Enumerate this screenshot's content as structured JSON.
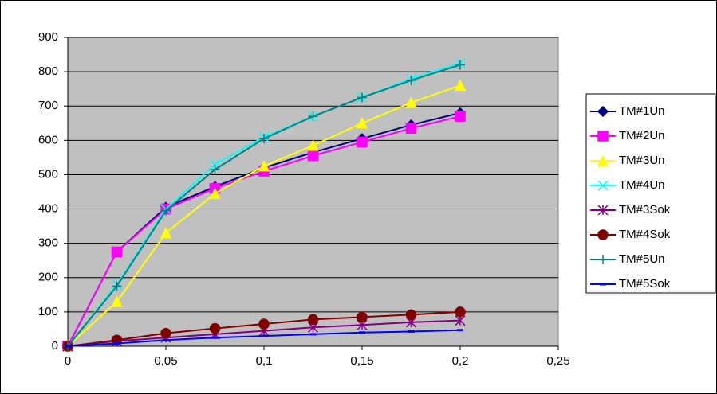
{
  "chart_data": {
    "type": "line",
    "x": [
      0,
      0.025,
      0.05,
      0.075,
      0.1,
      0.125,
      0.15,
      0.175,
      0.2
    ],
    "xlim": [
      0,
      0.25
    ],
    "xticks": [
      0,
      {
        "value": 0.05,
        "label": "0,05"
      },
      {
        "value": 0.1,
        "label": "0,1"
      },
      {
        "value": 0.15,
        "label": "0,15"
      },
      {
        "value": 0.2,
        "label": "0,2"
      },
      {
        "value": 0.25,
        "label": "0,25"
      }
    ],
    "ylim": [
      0,
      900
    ],
    "yticks": [
      0,
      100,
      200,
      300,
      400,
      500,
      600,
      700,
      800,
      900
    ],
    "grid": true,
    "legend": "right",
    "series": [
      {
        "name": "TM#1Un",
        "color": "#000080",
        "marker": "diamond",
        "values": [
          0,
          275,
          405,
          465,
          520,
          565,
          605,
          645,
          680
        ]
      },
      {
        "name": "TM#2Un",
        "color": "#FF00FF",
        "marker": "square",
        "values": [
          0,
          275,
          400,
          460,
          510,
          555,
          595,
          635,
          670
        ]
      },
      {
        "name": "TM#3Un",
        "color": "#FFFF00",
        "marker": "triangle",
        "values": [
          0,
          130,
          330,
          445,
          525,
          585,
          650,
          710,
          760
        ]
      },
      {
        "name": "TM#4Un",
        "color": "#00FFFF",
        "marker": "x",
        "values": [
          0,
          180,
          400,
          530,
          610,
          670,
          725,
          780,
          825
        ]
      },
      {
        "name": "TM#3Sok",
        "color": "#800080",
        "marker": "star",
        "values": [
          0,
          15,
          25,
          35,
          45,
          55,
          62,
          70,
          75
        ]
      },
      {
        "name": "TM#4Sok",
        "color": "#800000",
        "marker": "circle",
        "values": [
          0,
          18,
          38,
          52,
          65,
          78,
          85,
          92,
          100
        ]
      },
      {
        "name": "TM#5Un",
        "color": "#008080",
        "marker": "plus",
        "values": [
          0,
          175,
          395,
          515,
          605,
          670,
          725,
          775,
          820
        ]
      },
      {
        "name": "TM#5Sok",
        "color": "#0000FF",
        "marker": "dash",
        "values": [
          0,
          8,
          18,
          25,
          30,
          35,
          40,
          43,
          47
        ]
      }
    ]
  }
}
